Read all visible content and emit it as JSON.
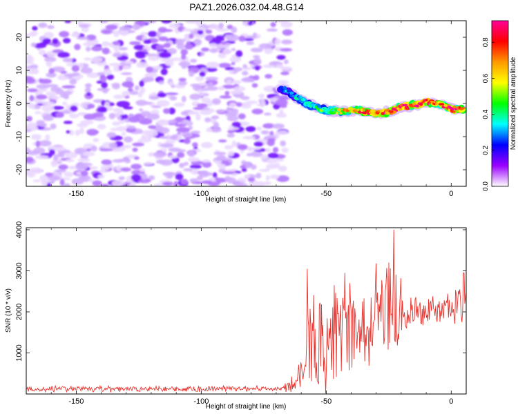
{
  "title": "PAZ1.2026.032.04.48.G14",
  "colors": {
    "signal": "#5a00e6",
    "snr_line": "#e8322c",
    "axis": "#000000"
  },
  "chart_data": [
    {
      "type": "heatmap",
      "xlabel": "Height of straight line (km)",
      "ylabel": "Frequency (Hz)",
      "xlim": [
        -170,
        6
      ],
      "ylim": [
        -25,
        25
      ],
      "x_ticks": [
        -150,
        -100,
        -50,
        0
      ],
      "y_ticks": [
        -20,
        -10,
        0,
        10,
        20
      ],
      "x_tick_labels": [
        "-150",
        "-100",
        "-50",
        "0"
      ],
      "y_tick_labels": [
        "-20",
        "-10",
        "0",
        "10",
        "20"
      ],
      "colorbar": {
        "label": "Normalized spectral amplitude",
        "range": [
          0,
          0.92
        ],
        "ticks": [
          0.0,
          0.2,
          0.4,
          0.6,
          0.8
        ],
        "tick_labels": [
          "0.0",
          "0.2",
          "0.4",
          "0.6",
          "0.8"
        ],
        "colormap": [
          "#ffffff",
          "#9a00ff",
          "#0000ff",
          "#00ffff",
          "#00ff00",
          "#ffff00",
          "#ff9900",
          "#ff0000",
          "#ff0099"
        ]
      },
      "noise_region_x": [
        -170,
        -68
      ],
      "signal_trace": [
        {
          "x": -68,
          "freq": 4.5,
          "amp": 0.25
        },
        {
          "x": -64,
          "freq": 3.0,
          "amp": 0.3
        },
        {
          "x": -60,
          "freq": 1.0,
          "amp": 0.35
        },
        {
          "x": -55,
          "freq": -1.0,
          "amp": 0.4
        },
        {
          "x": -50,
          "freq": -2.0,
          "amp": 0.45
        },
        {
          "x": -45,
          "freq": -2.5,
          "amp": 0.55
        },
        {
          "x": -40,
          "freq": -2.0,
          "amp": 0.6
        },
        {
          "x": -35,
          "freq": -2.5,
          "amp": 0.7
        },
        {
          "x": -30,
          "freq": -2.8,
          "amp": 0.75
        },
        {
          "x": -25,
          "freq": -2.5,
          "amp": 0.7
        },
        {
          "x": -20,
          "freq": -1.0,
          "amp": 0.8
        },
        {
          "x": -15,
          "freq": -0.5,
          "amp": 0.75
        },
        {
          "x": -10,
          "freq": 0.5,
          "amp": 0.9
        },
        {
          "x": -5,
          "freq": 0.0,
          "amp": 0.7
        },
        {
          "x": 0,
          "freq": -1.5,
          "amp": 0.8
        },
        {
          "x": 5,
          "freq": -1.8,
          "amp": 0.65
        }
      ]
    },
    {
      "type": "line",
      "xlabel": "Height of straight line (km)",
      "ylabel": "SNR (10 * v/v)",
      "xlim": [
        -170,
        6
      ],
      "ylim": [
        0,
        4050
      ],
      "x_ticks": [
        -150,
        -100,
        -50,
        0
      ],
      "y_ticks": [
        1000,
        2000,
        3000,
        4000
      ],
      "x_tick_labels": [
        "-150",
        "-100",
        "-50",
        "0"
      ],
      "y_tick_labels": [
        "1000",
        "2000",
        "3000",
        "4000"
      ],
      "series": [
        {
          "name": "SNR",
          "envelope": [
            {
              "x": -170,
              "base": 120,
              "spread": 80
            },
            {
              "x": -68,
              "base": 130,
              "spread": 90
            },
            {
              "x": -62,
              "base": 300,
              "spread": 300
            },
            {
              "x": -58,
              "base": 900,
              "spread": 1000
            },
            {
              "x": -55,
              "base": 1300,
              "spread": 1700
            },
            {
              "x": -50,
              "base": 1100,
              "spread": 1300
            },
            {
              "x": -45,
              "base": 1600,
              "spread": 1600
            },
            {
              "x": -40,
              "base": 1700,
              "spread": 1300
            },
            {
              "x": -35,
              "base": 1650,
              "spread": 1100
            },
            {
              "x": -30,
              "base": 1900,
              "spread": 1200
            },
            {
              "x": -25,
              "base": 2100,
              "spread": 1400
            },
            {
              "x": -22,
              "base": 2300,
              "spread": 1600
            },
            {
              "x": -18,
              "base": 2000,
              "spread": 700
            },
            {
              "x": -10,
              "base": 2100,
              "spread": 500
            },
            {
              "x": -5,
              "base": 2000,
              "spread": 400
            },
            {
              "x": 0,
              "base": 2150,
              "spread": 600
            },
            {
              "x": 6,
              "base": 2400,
              "spread": 700
            }
          ],
          "peaks": [
            {
              "x": -57.5,
              "y": 3050
            },
            {
              "x": -42.5,
              "y": 2950
            },
            {
              "x": -40.5,
              "y": 2700
            },
            {
              "x": -30.0,
              "y": 3180
            },
            {
              "x": -23.0,
              "y": 4000
            },
            {
              "x": 5.0,
              "y": 2950
            }
          ]
        }
      ]
    }
  ]
}
